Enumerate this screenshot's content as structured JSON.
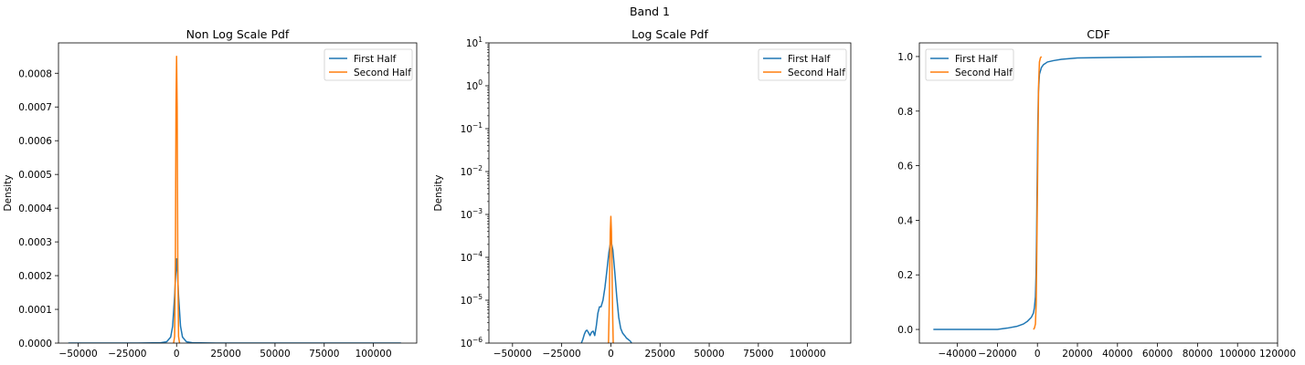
{
  "figure": {
    "suptitle": "Band 1"
  },
  "colors": {
    "first": "#1f77b4",
    "second": "#ff7f0e"
  },
  "chart_data": [
    {
      "type": "line",
      "title": "Non Log Scale Pdf",
      "xlabel": "",
      "ylabel": "Density",
      "xlim": [
        -60000,
        122000
      ],
      "ylim": [
        0,
        0.00089
      ],
      "xticks": [
        -50000,
        -25000,
        0,
        25000,
        50000,
        75000,
        100000
      ],
      "xtick_labels": [
        "−50000",
        "−25000",
        "0",
        "25000",
        "50000",
        "75000",
        "100000"
      ],
      "yticks": [
        0,
        0.0001,
        0.0002,
        0.0003,
        0.0004,
        0.0005,
        0.0006,
        0.0007,
        0.0008
      ],
      "ytick_labels": [
        "0.0000",
        "0.0001",
        "0.0002",
        "0.0003",
        "0.0004",
        "0.0005",
        "0.0006",
        "0.0007",
        "0.0008"
      ],
      "legend": {
        "position": "top-right",
        "entries": [
          "First Half",
          "Second Half"
        ]
      },
      "series": [
        {
          "name": "First Half",
          "x": [
            -55000,
            -20000,
            -8000,
            -5000,
            -3000,
            -2000,
            -1000,
            -500,
            0,
            500,
            1000,
            2000,
            3000,
            5000,
            8000,
            20000,
            50000,
            80000,
            114000
          ],
          "y": [
            0,
            0,
            1e-06,
            4e-06,
            1.8e-05,
            5e-05,
            0.00014,
            0.0002,
            0.00025,
            0.0002,
            0.00014,
            5e-05,
            1.8e-05,
            4e-06,
            1e-06,
            0,
            0,
            0,
            0
          ]
        },
        {
          "name": "Second Half",
          "x": [
            -1500,
            -1000,
            -600,
            -300,
            0,
            300,
            600,
            1000,
            1500
          ],
          "y": [
            0,
            2e-05,
            0.00025,
            0.0007,
            0.00085,
            0.0007,
            0.00025,
            2e-05,
            0
          ]
        }
      ]
    },
    {
      "type": "line",
      "title": "Log Scale Pdf",
      "xlabel": "",
      "ylabel": "Density",
      "yscale": "log",
      "xlim": [
        -62000,
        122000
      ],
      "ylim": [
        1e-06,
        10
      ],
      "xticks": [
        -50000,
        -25000,
        0,
        25000,
        50000,
        75000,
        100000
      ],
      "xtick_labels": [
        "−50000",
        "−25000",
        "0",
        "25000",
        "50000",
        "75000",
        "100000"
      ],
      "yticks": [
        1e-06,
        1e-05,
        0.0001,
        0.001,
        0.01,
        0.1,
        1,
        10
      ],
      "ytick_bases": [
        "10",
        "10",
        "10",
        "10",
        "10",
        "10",
        "10",
        "10"
      ],
      "ytick_exps": [
        "−6",
        "−5",
        "−4",
        "−3",
        "−2",
        "−1",
        "0",
        "1"
      ],
      "legend": {
        "position": "top-right",
        "entries": [
          "First Half",
          "Second Half"
        ]
      },
      "series": [
        {
          "name": "First Half",
          "x": [
            -15000,
            -14300,
            -13500,
            -12800,
            -12200,
            -11500,
            -10600,
            -9800,
            -9000,
            -8200,
            -7400,
            -6600,
            -5800,
            -5000,
            -4000,
            -3000,
            -2000,
            -1000,
            0,
            1000,
            2000,
            3000,
            4000,
            5000,
            6000,
            7000,
            8000,
            9000,
            10000,
            10500
          ],
          "y": [
            1e-06,
            1.2e-06,
            1.6e-06,
            1.9e-06,
            2e-06,
            1.8e-06,
            1.5e-06,
            1.8e-06,
            1.9e-06,
            1.5e-06,
            2.5e-06,
            5e-06,
            7e-06,
            7e-06,
            1e-05,
            2e-05,
            5e-05,
            0.00013,
            0.00025,
            0.00015,
            4.5e-05,
            1.2e-05,
            4e-06,
            2.2e-06,
            1.7e-06,
            1.5e-06,
            1.3e-06,
            1.2e-06,
            1.1e-06,
            1e-06
          ]
        },
        {
          "name": "Second Half",
          "x": [
            -1200,
            -900,
            -700,
            -500,
            -300,
            0,
            300,
            500,
            700,
            900,
            1200
          ],
          "y": [
            1e-06,
            5e-06,
            2e-05,
            0.0001,
            0.0004,
            0.0009,
            0.0004,
            0.0001,
            2e-05,
            5e-06,
            1e-06
          ]
        }
      ]
    },
    {
      "type": "line",
      "title": "CDF",
      "xlabel": "",
      "ylabel": "",
      "xlim": [
        -59000,
        120000
      ],
      "ylim": [
        -0.05,
        1.05
      ],
      "xticks": [
        -40000,
        -20000,
        0,
        20000,
        40000,
        60000,
        80000,
        100000,
        120000
      ],
      "xtick_labels": [
        "−40000",
        "−20000",
        "0",
        "20000",
        "40000",
        "60000",
        "80000",
        "100000",
        "120000"
      ],
      "yticks": [
        0,
        0.2,
        0.4,
        0.6,
        0.8,
        1.0
      ],
      "ytick_labels": [
        "0.0",
        "0.2",
        "0.4",
        "0.6",
        "0.8",
        "1.0"
      ],
      "legend": {
        "position": "top-left",
        "entries": [
          "First Half",
          "Second Half"
        ]
      },
      "series": [
        {
          "name": "First Half",
          "x": [
            -52000,
            -20000,
            -15000,
            -10000,
            -7000,
            -5000,
            -3000,
            -2000,
            -1500,
            -1000,
            -700,
            -400,
            -200,
            0,
            200,
            500,
            1000,
            2000,
            3000,
            5000,
            8000,
            12000,
            20000,
            40000,
            60000,
            80000,
            112000
          ],
          "y": [
            0,
            0,
            0.005,
            0.012,
            0.02,
            0.03,
            0.045,
            0.06,
            0.08,
            0.12,
            0.2,
            0.35,
            0.5,
            0.62,
            0.75,
            0.87,
            0.935,
            0.96,
            0.97,
            0.98,
            0.985,
            0.99,
            0.995,
            0.997,
            0.998,
            0.999,
            1.0
          ]
        },
        {
          "name": "Second Half",
          "x": [
            -2000,
            -1500,
            -1000,
            -600,
            -300,
            0,
            300,
            600,
            1000,
            1500,
            2000
          ],
          "y": [
            0,
            0.005,
            0.02,
            0.1,
            0.3,
            0.5,
            0.7,
            0.9,
            0.98,
            0.995,
            1.0
          ]
        }
      ]
    }
  ]
}
